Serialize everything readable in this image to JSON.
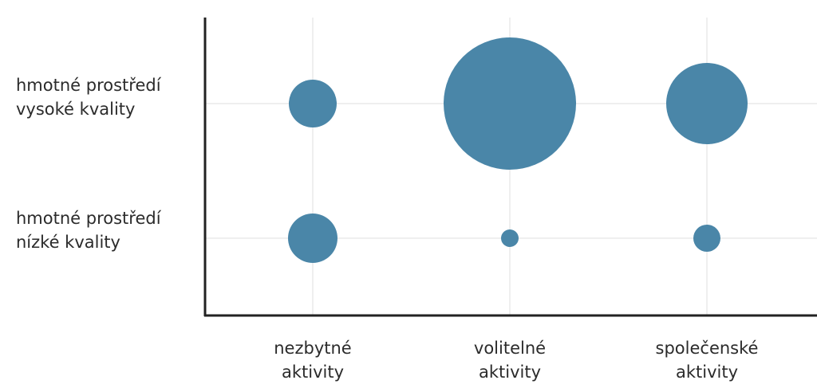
{
  "chart_data": {
    "type": "scatter",
    "title": "",
    "xlabel": "",
    "ylabel": "",
    "grid": true,
    "x_categories": [
      [
        "nezbytné",
        "aktivity"
      ],
      [
        "volitelné",
        "aktivity"
      ],
      [
        "společenské",
        "aktivity"
      ]
    ],
    "y_categories": [
      [
        "hmotné prostředí",
        "vysoké kvality"
      ],
      [
        "hmotné prostředí",
        "nízké kvality"
      ]
    ],
    "points": [
      {
        "x": 0,
        "y": 0,
        "size": 30
      },
      {
        "x": 1,
        "y": 0,
        "size": 83
      },
      {
        "x": 2,
        "y": 0,
        "size": 51
      },
      {
        "x": 0,
        "y": 1,
        "size": 31
      },
      {
        "x": 1,
        "y": 1,
        "size": 11
      },
      {
        "x": 2,
        "y": 1,
        "size": 17
      }
    ],
    "colors": {
      "bubble": "#4a86a8",
      "axis": "#222222",
      "grid": "#efefef"
    }
  }
}
